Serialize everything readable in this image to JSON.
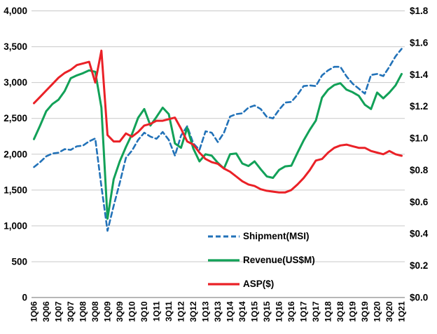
{
  "chart_data": {
    "type": "line",
    "title": "",
    "grid": true,
    "legend_position": "inside-bottom-center",
    "categories": [
      "1Q06",
      "2Q06",
      "3Q06",
      "4Q06",
      "1Q07",
      "2Q07",
      "3Q07",
      "4Q07",
      "1Q08",
      "2Q08",
      "3Q08",
      "4Q08",
      "1Q09",
      "2Q09",
      "3Q09",
      "4Q09",
      "1Q10",
      "2Q10",
      "3Q10",
      "4Q10",
      "1Q11",
      "2Q11",
      "3Q11",
      "4Q11",
      "1Q12",
      "2Q12",
      "3Q12",
      "4Q12",
      "1Q13",
      "2Q13",
      "3Q13",
      "4Q13",
      "1Q14",
      "2Q14",
      "3Q14",
      "4Q14",
      "1Q15",
      "2Q15",
      "3Q15",
      "4Q15",
      "1Q16",
      "2Q16",
      "3Q16",
      "4Q16",
      "1Q17",
      "2Q17",
      "3Q17",
      "4Q17",
      "1Q18",
      "2Q18",
      "3Q18",
      "4Q18",
      "1Q19",
      "2Q19",
      "3Q19",
      "4Q19",
      "1Q20",
      "2Q20",
      "3Q20",
      "4Q20",
      "1Q21"
    ],
    "x_tick_labels": [
      "1Q06",
      "3Q06",
      "1Q07",
      "3Q07",
      "1Q08",
      "3Q08",
      "1Q09",
      "3Q09",
      "1Q10",
      "3Q10",
      "1Q11",
      "3Q11",
      "1Q12",
      "3Q12",
      "1Q13",
      "3Q13",
      "1Q14",
      "3Q14",
      "1Q15",
      "3Q15",
      "1Q16",
      "3Q16",
      "1Q17",
      "3Q17",
      "1Q18",
      "3Q18",
      "1Q19",
      "3Q19",
      "1Q20",
      "3Q20",
      "1Q21"
    ],
    "left_axis": {
      "min": 0,
      "max": 4000,
      "step": 500,
      "tick_labels": [
        "0",
        "500",
        "1,000",
        "1,500",
        "2,000",
        "2,500",
        "3,000",
        "3,500",
        "4,000"
      ]
    },
    "right_axis": {
      "min": 0.0,
      "max": 1.8,
      "step": 0.2,
      "tick_labels": [
        "$0.0",
        "$0.2",
        "$0.4",
        "$0.6",
        "$0.8",
        "$1.0",
        "$1.2",
        "$1.4",
        "$1.6",
        "$1.8"
      ]
    },
    "series": [
      {
        "name": "Shipment(MSI)",
        "axis": "left",
        "color": "#2272B8",
        "style": "dashed",
        "values": [
          1820,
          1890,
          1970,
          2010,
          2020,
          2070,
          2060,
          2110,
          2120,
          2180,
          2220,
          1550,
          930,
          1280,
          1600,
          1950,
          2050,
          2200,
          2300,
          2245,
          2215,
          2310,
          2200,
          1980,
          2260,
          2390,
          2150,
          2060,
          2320,
          2300,
          2170,
          2300,
          2525,
          2560,
          2570,
          2650,
          2680,
          2630,
          2520,
          2500,
          2620,
          2720,
          2730,
          2830,
          2950,
          2960,
          2950,
          3100,
          3170,
          3220,
          3220,
          3085,
          2985,
          2915,
          2845,
          3105,
          3120,
          3090,
          3220,
          3365,
          3470
        ]
      },
      {
        "name": "Revenue(US$M)",
        "axis": "left",
        "color": "#12A158",
        "style": "solid",
        "values": [
          2210,
          2400,
          2600,
          2700,
          2760,
          2880,
          3060,
          3100,
          3130,
          3170,
          3150,
          2650,
          1100,
          1650,
          1900,
          2100,
          2280,
          2510,
          2630,
          2400,
          2520,
          2650,
          2560,
          2150,
          2090,
          2370,
          2080,
          1900,
          2000,
          1980,
          1880,
          1800,
          2000,
          2010,
          1870,
          1835,
          1900,
          1790,
          1690,
          1670,
          1780,
          1830,
          1840,
          2020,
          2190,
          2340,
          2470,
          2790,
          2900,
          2965,
          2990,
          2900,
          2865,
          2815,
          2690,
          2630,
          2860,
          2780,
          2860,
          2960,
          3120
        ]
      },
      {
        "name": "ASP($)",
        "axis": "right",
        "color": "#EA2127",
        "style": "solid",
        "values": [
          1.22,
          1.26,
          1.3,
          1.34,
          1.38,
          1.41,
          1.43,
          1.46,
          1.47,
          1.48,
          1.35,
          1.55,
          1.02,
          0.98,
          0.98,
          1.03,
          1.01,
          1.04,
          1.08,
          1.09,
          1.11,
          1.11,
          1.12,
          1.13,
          1.06,
          0.98,
          0.96,
          0.91,
          0.87,
          0.85,
          0.84,
          0.81,
          0.79,
          0.76,
          0.73,
          0.71,
          0.7,
          0.68,
          0.67,
          0.665,
          0.66,
          0.66,
          0.675,
          0.71,
          0.75,
          0.8,
          0.86,
          0.87,
          0.91,
          0.94,
          0.955,
          0.96,
          0.95,
          0.94,
          0.94,
          0.92,
          0.91,
          0.9,
          0.92,
          0.9,
          0.89
        ]
      }
    ],
    "colors": {
      "gridline": "#C9C9C9",
      "axis_line": "#8C8C8C",
      "tick_text": "#000000"
    }
  }
}
